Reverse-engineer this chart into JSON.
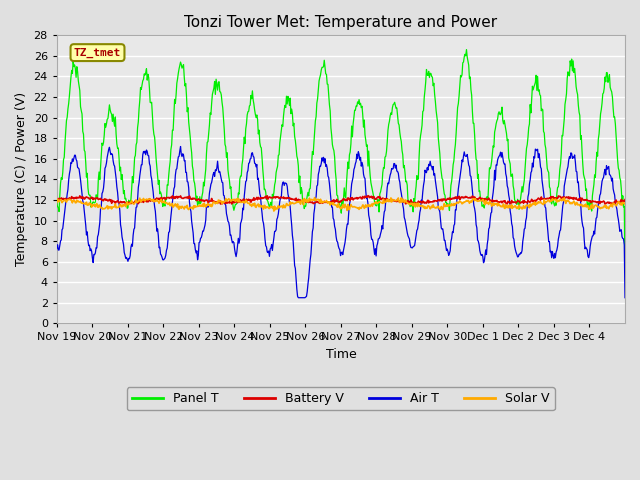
{
  "title": "Tonzi Tower Met: Temperature and Power",
  "xlabel": "Time",
  "ylabel": "Temperature (C) / Power (V)",
  "ylim": [
    0,
    28
  ],
  "yticks": [
    0,
    2,
    4,
    6,
    8,
    10,
    12,
    14,
    16,
    18,
    20,
    22,
    24,
    26,
    28
  ],
  "bg_color": "#e0e0e0",
  "plot_bg_color": "#e8e8e8",
  "grid_color": "#ffffff",
  "legend_items": [
    "Panel T",
    "Battery V",
    "Air T",
    "Solar V"
  ],
  "legend_colors": [
    "#00ee00",
    "#dd0000",
    "#0000dd",
    "#ffaa00"
  ],
  "annotation_text": "TZ_tmet",
  "annotation_color": "#aa0000",
  "annotation_bg": "#ffffaa",
  "annotation_border": "#888800",
  "line_colors": {
    "panel_t": "#00ee00",
    "battery_v": "#dd0000",
    "air_t": "#0000dd",
    "solar_v": "#ffaa00"
  },
  "n_days": 16,
  "xticklabels": [
    "Nov 19",
    "Nov 20",
    "Nov 21",
    "Nov 22",
    "Nov 23",
    "Nov 24",
    "Nov 25",
    "Nov 26",
    "Nov 27",
    "Nov 28",
    "Nov 29",
    "Nov 30",
    "Dec 1",
    "Dec 2",
    "Dec 3",
    "Dec 4"
  ]
}
